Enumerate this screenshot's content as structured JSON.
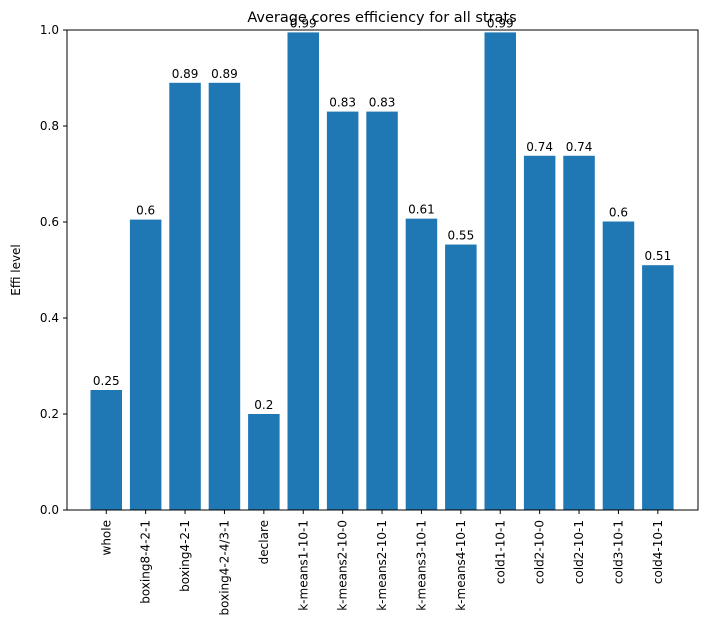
{
  "chart_data": {
    "type": "bar",
    "title": "Average cores efficiency for all strats",
    "xlabel": "",
    "ylabel": "Effi level",
    "ylim": [
      0,
      1.0
    ],
    "yticks": [
      "0.0",
      "0.2",
      "0.4",
      "0.6",
      "0.8",
      "1.0"
    ],
    "grid": false,
    "categories": [
      "whole",
      "boxing8-4-2-1",
      "boxing4-2-1",
      "boxing4-2-4/3-1",
      "declare",
      "k-means1-10-1",
      "k-means2-10-0",
      "k-means2-10-1",
      "k-means3-10-1",
      "k-means4-10-1",
      "cold1-10-1",
      "cold2-10-0",
      "cold2-10-1",
      "cold3-10-1",
      "cold4-10-1"
    ],
    "values": [
      0.25,
      0.605,
      0.89,
      0.89,
      0.2,
      0.995,
      0.83,
      0.83,
      0.607,
      0.553,
      0.995,
      0.738,
      0.738,
      0.601,
      0.51
    ],
    "data_labels": [
      "0.25",
      "0.6",
      "0.89",
      "0.89",
      "0.2",
      "0.99",
      "0.83",
      "0.83",
      "0.61",
      "0.55",
      "0.99",
      "0.74",
      "0.74",
      "0.6",
      "0.51"
    ],
    "bar_color": "#1f77b4"
  }
}
